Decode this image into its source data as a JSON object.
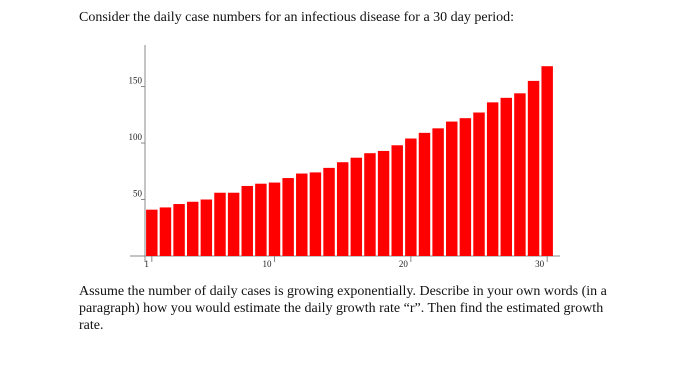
{
  "intro": "Consider the daily case numbers for an infectious disease for a 30 day period:",
  "question": "Assume the number of daily cases is growing exponentially. Describe in your own words (in a paragraph) how you would estimate the daily growth rate “r”. Then find the estimated growth rate.",
  "chart_data": {
    "type": "bar",
    "color": "#ff0000",
    "x": [
      1,
      2,
      3,
      4,
      5,
      6,
      7,
      8,
      9,
      10,
      11,
      12,
      13,
      14,
      15,
      16,
      17,
      18,
      19,
      20,
      21,
      22,
      23,
      24,
      25,
      26,
      27,
      28,
      29,
      30
    ],
    "values": [
      41,
      43,
      46,
      48,
      50,
      56,
      56,
      62,
      64,
      65,
      69,
      73,
      74,
      78,
      83,
      87,
      91,
      93,
      98,
      104,
      109,
      113,
      119,
      122,
      127,
      136,
      140,
      144,
      155,
      168
    ],
    "xlim": [
      0.5,
      30.5
    ],
    "xticks": [
      1,
      10,
      20,
      30
    ],
    "ylim": [
      0,
      185
    ],
    "yticks": [
      50,
      100,
      150
    ]
  }
}
